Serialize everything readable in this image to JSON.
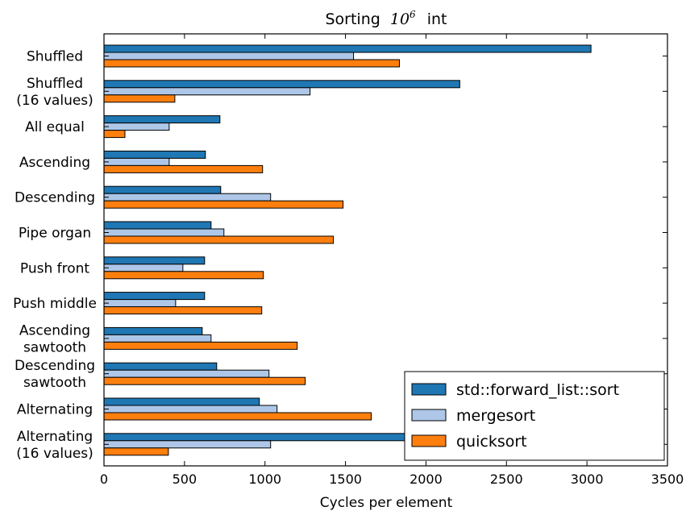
{
  "chart_data": {
    "type": "bar",
    "orientation": "horizontal",
    "title_prefix": "Sorting",
    "title_base": "10",
    "title_exponent": "6",
    "title_suffix": "int",
    "xlabel": "Cycles per element",
    "ylabel": "",
    "xlim": [
      0,
      3500
    ],
    "xticks": [
      "0",
      "500",
      "1000",
      "1500",
      "2000",
      "2500",
      "3000",
      "3500"
    ],
    "grid": false,
    "legend_position": "lower-right",
    "categories": [
      [
        "Shuffled"
      ],
      [
        "Shuffled",
        "(16 values)"
      ],
      [
        "All equal"
      ],
      [
        "Ascending"
      ],
      [
        "Descending"
      ],
      [
        "Pipe organ"
      ],
      [
        "Push front"
      ],
      [
        "Push middle"
      ],
      [
        "Ascending",
        "sawtooth"
      ],
      [
        "Descending",
        "sawtooth"
      ],
      [
        "Alternating"
      ],
      [
        "Alternating",
        "(16 values)"
      ]
    ],
    "series": [
      {
        "name": "std::forward_list::sort",
        "color": "#1f77b4",
        "values": [
          3025,
          2210,
          720,
          630,
          725,
          665,
          625,
          625,
          610,
          700,
          965,
          1870
        ]
      },
      {
        "name": "mergesort",
        "color": "#aec7e8",
        "values": [
          1550,
          1280,
          405,
          405,
          1035,
          745,
          490,
          445,
          665,
          1025,
          1075,
          1035
        ]
      },
      {
        "name": "quicksort",
        "color": "#ff7f0e",
        "values": [
          1835,
          440,
          130,
          985,
          1485,
          1425,
          990,
          980,
          1200,
          1250,
          1660,
          400
        ]
      }
    ]
  }
}
